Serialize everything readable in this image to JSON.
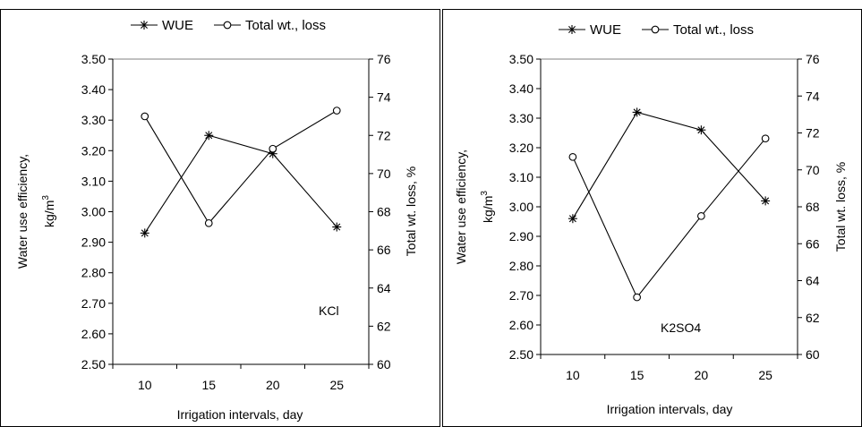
{
  "chart_data": [
    {
      "type": "line",
      "x": [
        10,
        15,
        20,
        25
      ],
      "xlabel": "Irrigation intervals, day",
      "ylabel": "Water use efficiency,",
      "ylabel_line2": "kg/m",
      "ylabel_sup": "3",
      "y2label": "Total wt. loss, %",
      "ylim": [
        2.5,
        3.5
      ],
      "y2lim": [
        60,
        76
      ],
      "yticks": [
        "2.50",
        "2.60",
        "2.70",
        "2.80",
        "2.90",
        "3.00",
        "3.10",
        "3.20",
        "3.30",
        "3.40",
        "3.50"
      ],
      "y2ticks": [
        "60",
        "62",
        "64",
        "66",
        "68",
        "70",
        "72",
        "74",
        "76"
      ],
      "xticks": [
        "10",
        "15",
        "20",
        "25"
      ],
      "annotation": "KCl",
      "legend_position": "top",
      "series": [
        {
          "name": "WUE",
          "axis": "left",
          "marker": "asterisk",
          "values": [
            2.93,
            3.25,
            3.19,
            2.95
          ]
        },
        {
          "name": "Total wt., loss",
          "axis": "right",
          "marker": "circle",
          "values": [
            73.0,
            67.4,
            71.3,
            73.3
          ]
        }
      ]
    },
    {
      "type": "line",
      "x": [
        10,
        15,
        20,
        25
      ],
      "xlabel": "Irrigation intervals, day",
      "ylabel": "Water use efficiency,",
      "ylabel_line2": "kg/m",
      "ylabel_sup": "3",
      "y2label": "Total wt. loss, %",
      "ylim": [
        2.5,
        3.5
      ],
      "y2lim": [
        60,
        76
      ],
      "yticks": [
        "2.50",
        "2.60",
        "2.70",
        "2.80",
        "2.90",
        "3.00",
        "3.10",
        "3.20",
        "3.30",
        "3.40",
        "3.50"
      ],
      "y2ticks": [
        "60",
        "62",
        "64",
        "66",
        "68",
        "70",
        "72",
        "74",
        "76"
      ],
      "xticks": [
        "10",
        "15",
        "20",
        "25"
      ],
      "annotation": "K2SO4",
      "legend_position": "top",
      "series": [
        {
          "name": "WUE",
          "axis": "left",
          "marker": "asterisk",
          "values": [
            2.96,
            3.32,
            3.26,
            3.02
          ]
        },
        {
          "name": "Total wt., loss",
          "axis": "right",
          "marker": "circle",
          "values": [
            70.7,
            63.1,
            67.5,
            71.7
          ]
        }
      ]
    }
  ]
}
